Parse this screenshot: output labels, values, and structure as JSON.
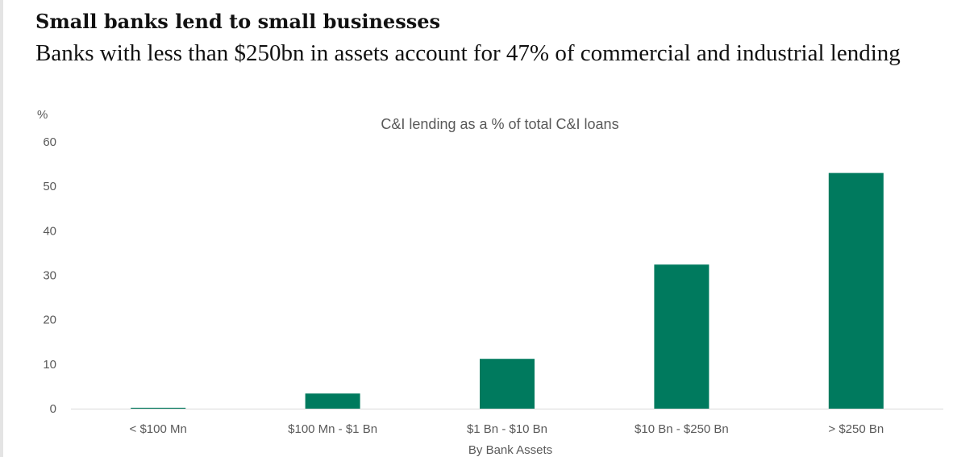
{
  "headline": "Small banks lend to small businesses",
  "subheadline": "Banks with less than $250bn in assets account for 47% of commercial and industrial lending",
  "colors": {
    "bar": "#007a5e",
    "axis": "#d9d9d9",
    "text": "#595959"
  },
  "chart_data": {
    "type": "bar",
    "title": "C&I lending as a % of total C&I loans",
    "xlabel": "By Bank Assets",
    "ylabel": "%",
    "categories": [
      "< $100 Mn",
      "$100 Mn - $1 Bn",
      "$1 Bn - $10 Bn",
      "$10 Bn - $250 Bn",
      "> $250 Bn"
    ],
    "values": [
      0.2,
      3.4,
      11.2,
      32.4,
      53.0
    ],
    "ylim": [
      0,
      60
    ],
    "yticks": [
      0,
      10,
      20,
      30,
      40,
      50,
      60
    ],
    "grid": false,
    "legend": "none"
  }
}
